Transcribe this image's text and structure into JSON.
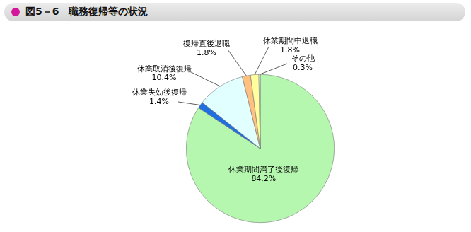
{
  "chart_data": {
    "type": "pie",
    "title": "図5－6　職務復帰等の状況",
    "categories": [
      "休業期間満了後復帰",
      "休業失効後復帰",
      "休業取消後復帰",
      "復帰直後退職",
      "休業期間中退職",
      "その他"
    ],
    "values": [
      84.2,
      1.4,
      10.4,
      1.8,
      1.8,
      0.3
    ],
    "value_labels": [
      "84.2%",
      "1.4%",
      "10.4%",
      "1.8%",
      "1.8%",
      "0.3%"
    ],
    "colors": [
      "#b6f7b0",
      "#1f6fe0",
      "#e2ffff",
      "#ffc080",
      "#ffff9e",
      "#ffffff"
    ],
    "data_labels": true
  }
}
